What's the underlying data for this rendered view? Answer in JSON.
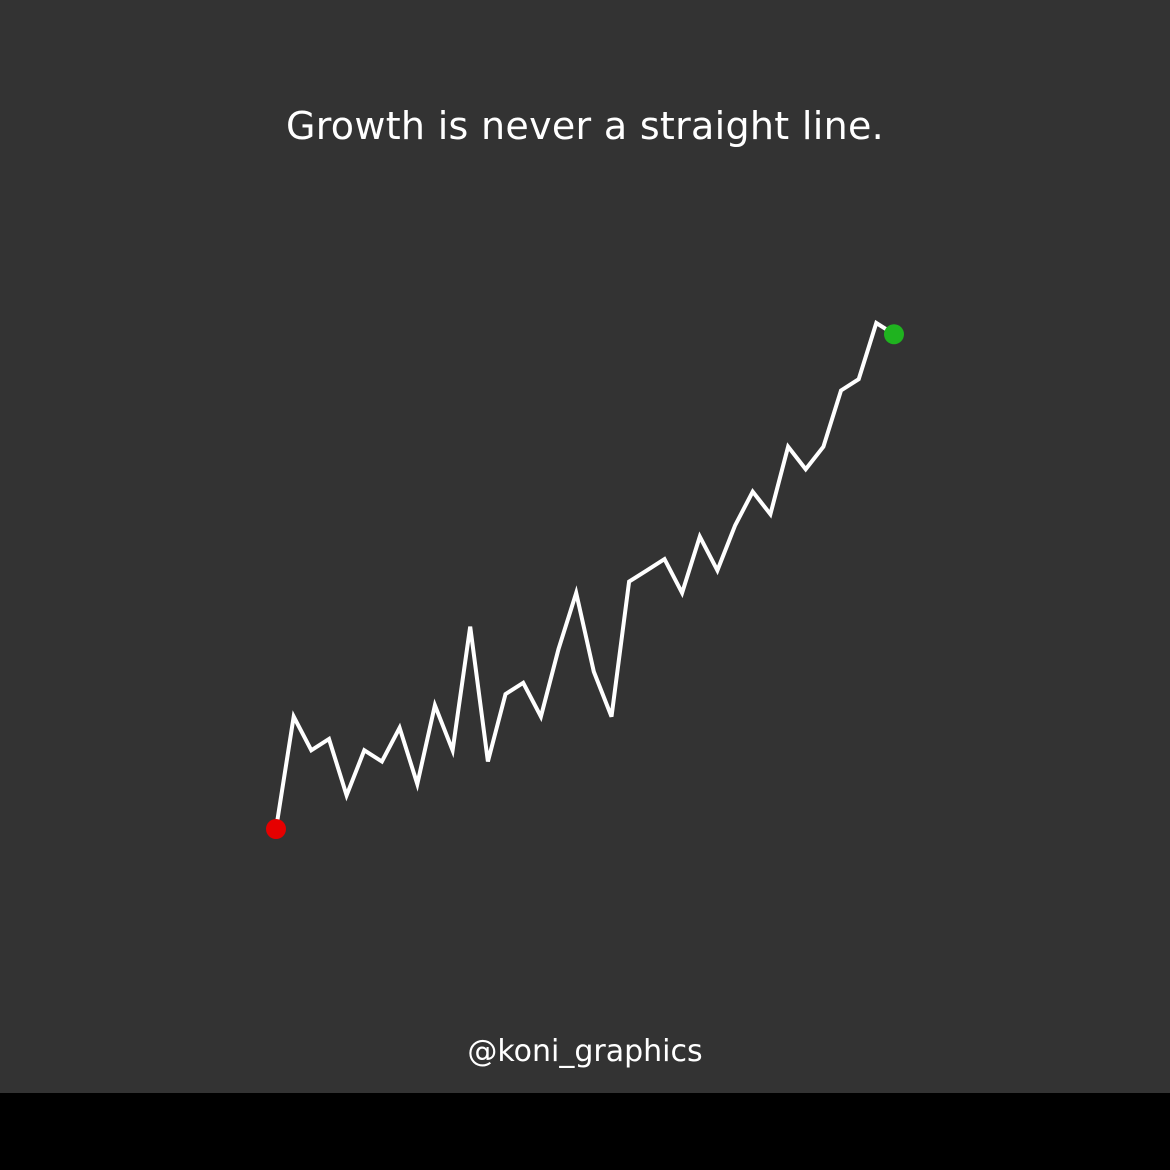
{
  "title": "Growth is never a straight line.",
  "handle": "@koni_graphics",
  "chart_data": {
    "type": "line",
    "x": [
      0,
      1,
      2,
      3,
      4,
      5,
      6,
      7,
      8,
      9,
      10,
      11,
      12,
      13,
      14,
      15,
      16,
      17,
      18,
      19,
      20,
      21,
      22,
      23,
      24,
      25,
      26,
      27,
      28,
      29,
      30,
      31,
      32,
      33,
      34,
      35
    ],
    "series": [
      {
        "values": [
          0.0,
          1.0,
          0.7,
          0.8,
          0.3,
          0.7,
          0.6,
          0.9,
          0.4,
          1.1,
          0.7,
          1.8,
          0.6,
          1.2,
          1.3,
          1.0,
          1.6,
          2.1,
          1.4,
          1.0,
          2.2,
          2.3,
          2.4,
          2.1,
          2.6,
          2.3,
          2.7,
          3.0,
          2.8,
          3.4,
          3.2,
          3.4,
          3.9,
          4.0,
          4.5,
          4.4
        ]
      }
    ],
    "markers": {
      "start": {
        "color": "#e60000"
      },
      "end": {
        "color": "#1fb31f"
      }
    },
    "line_color": "#ffffff",
    "background": "#333333",
    "axes": false,
    "grid": false,
    "legend": false
  }
}
